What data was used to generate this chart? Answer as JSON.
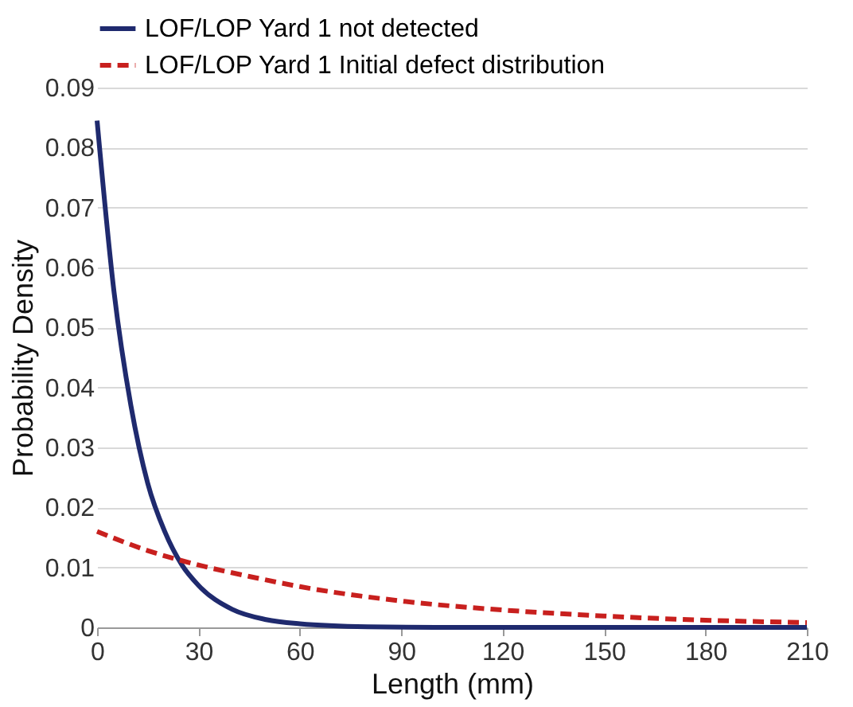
{
  "chart_data": {
    "type": "line",
    "xlabel": "Length (mm)",
    "ylabel": "Probability Density",
    "xlim": [
      0,
      210
    ],
    "xticks": [
      0,
      30,
      60,
      90,
      120,
      150,
      180,
      210
    ],
    "ylim": [
      0,
      0.09
    ],
    "yticks": [
      0,
      0.01,
      0.02,
      0.03,
      0.04,
      0.05,
      0.06,
      0.07,
      0.08,
      0.09
    ],
    "grid": "y",
    "legend": "top",
    "marker": "none",
    "series": [
      {
        "name": "LOF/LOP Yard 1 not detected",
        "color": "#1f2a6e",
        "line_style": "solid",
        "x": [
          0,
          5,
          10,
          15,
          20,
          25,
          30,
          40,
          50,
          60,
          80,
          100,
          150,
          210
        ],
        "values": [
          0.0845,
          0.056,
          0.037,
          0.024,
          0.016,
          0.0105,
          0.007,
          0.003,
          0.0013,
          0.0006,
          0.0001,
          0,
          0,
          0
        ]
      },
      {
        "name": "LOF/LOP Yard 1 Initial defect distribution",
        "color": "#c8201e",
        "line_style": "dashed",
        "x": [
          0,
          15,
          30,
          45,
          60,
          90,
          120,
          150,
          180,
          210
        ],
        "values": [
          0.016,
          0.0128,
          0.0104,
          0.0085,
          0.0068,
          0.0044,
          0.0029,
          0.0019,
          0.0012,
          0.0008
        ]
      }
    ]
  }
}
